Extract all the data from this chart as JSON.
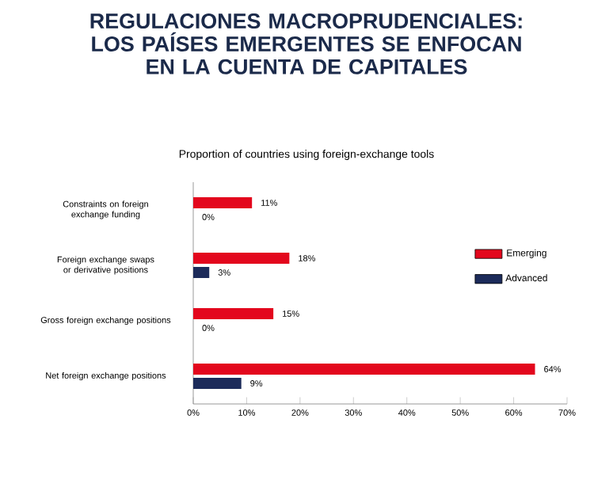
{
  "chart_data": {
    "type": "bar",
    "orientation": "horizontal",
    "title": "REGULACIONES MACROPRUDENCIALES: LOS PAÍSES EMERGENTES SE ENFOCAN EN LA CUENTA DE CAPITALES",
    "subtitle": "Proportion of countries using foreign-exchange tools",
    "categories": [
      "Constraints on foreign exchange funding",
      "Foreign exchange swaps or derivative positions",
      "Gross foreign exchange positions",
      "Net foreign exchange positions"
    ],
    "series": [
      {
        "name": "Emerging",
        "color": "#e3071d",
        "values": [
          11,
          18,
          15,
          64
        ],
        "value_labels": [
          "11%",
          "18%",
          "15%",
          "64%"
        ]
      },
      {
        "name": "Advanced",
        "color": "#1c2b5a",
        "values": [
          0,
          3,
          0,
          9
        ],
        "value_labels": [
          "0%",
          "3%",
          "0%",
          "9%"
        ]
      }
    ],
    "xlim": [
      0,
      70
    ],
    "xticks": [
      {
        "value": 0,
        "label": "0%"
      },
      {
        "value": 10,
        "label": "10%"
      },
      {
        "value": 20,
        "label": "20%"
      },
      {
        "value": 30,
        "label": "30%"
      },
      {
        "value": 40,
        "label": "40%"
      },
      {
        "value": 50,
        "label": "50%"
      },
      {
        "value": 60,
        "label": "60%"
      },
      {
        "value": 70,
        "label": "70%"
      }
    ],
    "legend": "right"
  }
}
